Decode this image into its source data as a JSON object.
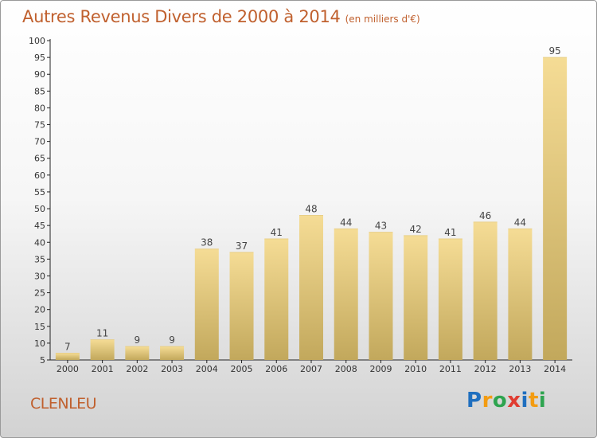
{
  "page": {
    "title": "Autres Revenus Divers de 2000 à 2014",
    "unit": "(en milliers d'€)",
    "commune": "CLENLEU",
    "logo": [
      "P",
      "r",
      "o",
      "x",
      "i",
      "t",
      "i"
    ],
    "logo_colors": [
      "#1f6fbf",
      "#f39c12",
      "#2ea44f",
      "#e03c31",
      "#1f6fbf",
      "#f39c12",
      "#2ea44f"
    ],
    "accent_color": "#c0602e"
  },
  "chart_data": {
    "type": "bar",
    "title": "Autres Revenus Divers de 2000 à 2014",
    "subtitle": "(en milliers d'€)",
    "xlabel": "",
    "ylabel": "",
    "categories": [
      "2000",
      "2001",
      "2002",
      "2003",
      "2004",
      "2005",
      "2006",
      "2007",
      "2008",
      "2009",
      "2010",
      "2011",
      "2012",
      "2013",
      "2014"
    ],
    "values": [
      7,
      11,
      9,
      9,
      38,
      37,
      41,
      48,
      44,
      43,
      42,
      41,
      46,
      44,
      95
    ],
    "ylim": [
      5,
      100
    ],
    "yticks": [
      5,
      10,
      15,
      20,
      25,
      30,
      35,
      40,
      45,
      50,
      55,
      60,
      65,
      70,
      75,
      80,
      85,
      90,
      95,
      100
    ],
    "grid": false,
    "bar_color_top": "#f5dc95",
    "bar_color_bottom": "#c2a85c"
  }
}
